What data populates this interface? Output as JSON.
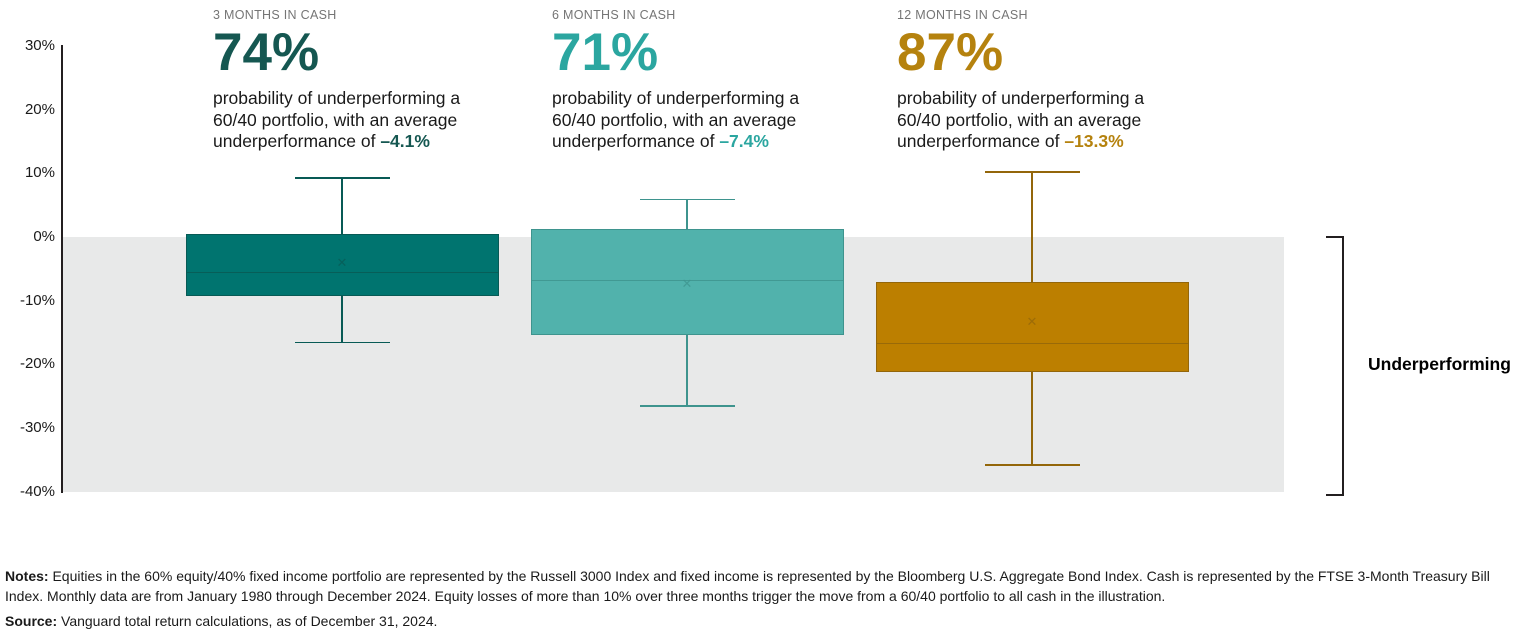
{
  "header": {
    "columns": [
      {
        "label": "3 MONTHS IN CASH",
        "value": "74%",
        "body_prefix": "probability of underperforming a 60/40 portfolio, with an average underperformance of ",
        "body_value": "–4.1%",
        "accent_color": "#155751"
      },
      {
        "label": "6 MONTHS IN CASH",
        "value": "71%",
        "body_prefix": "probability of underperforming a 60/40 portfolio, with an average underperformance of ",
        "body_value": "–7.4%",
        "accent_color": "#2BA6A0"
      },
      {
        "label": "12 MONTHS IN CASH",
        "value": "87%",
        "body_prefix": "probability of underperforming a 60/40 portfolio, with an average underperformance of ",
        "body_value": "–13.3%",
        "accent_color": "#B5820E"
      }
    ]
  },
  "chart_data": {
    "type": "boxplot",
    "title": "",
    "xlabel": "",
    "ylabel": "",
    "y_unit": "%",
    "ylim": [
      -40,
      30
    ],
    "y_ticks": [
      30,
      20,
      10,
      0,
      -10,
      -20,
      -30,
      -40
    ],
    "grid": false,
    "legend_position": "none",
    "shaded_region": {
      "from": 0,
      "to": -40,
      "label": "Underperforming",
      "color": "#E8E9E9"
    },
    "series": [
      {
        "name": "3 months in cash",
        "probability_of_underperforming_pct": 74,
        "average_underperformance_pct": -4.1,
        "whisker_high": 9.3,
        "q3": 0.5,
        "mean": -4.1,
        "median": -5.5,
        "q1": -9.3,
        "whisker_low": -16.6,
        "fill": "#00746F",
        "stroke": "#085A55"
      },
      {
        "name": "6 months in cash",
        "probability_of_underperforming_pct": 71,
        "average_underperformance_pct": -7.4,
        "whisker_high": 5.9,
        "q3": 1.3,
        "mean": -7.4,
        "median": -6.8,
        "q1": -15.4,
        "whisker_low": -26.5,
        "fill": "#51B2AC",
        "stroke": "#3E948E"
      },
      {
        "name": "12 months in cash",
        "probability_of_underperforming_pct": 87,
        "average_underperformance_pct": -13.3,
        "whisker_high": 10.2,
        "q3": -7.1,
        "mean": -13.3,
        "median": -16.6,
        "q1": -21.2,
        "whisker_low": -35.8,
        "fill": "#BC7F00",
        "stroke": "#93660A"
      }
    ],
    "mean_marker_glyph": "✕"
  },
  "footer": {
    "notes_label": "Notes:",
    "notes_text": " Equities in the 60% equity/40% fixed income portfolio are represented by the Russell 3000 Index and fixed income is represented by the Bloomberg U.S. Aggregate Bond Index. Cash is represented by the FTSE 3-Month Treasury Bill Index. Monthly data are from January 1980 through December 2024. Equity losses of more than 10% over three months trigger the move from a 60/40 portfolio to all cash in the illustration.",
    "source_label": "Source:",
    "source_text": " Vanguard total return calculations, as of December 31, 2024."
  }
}
